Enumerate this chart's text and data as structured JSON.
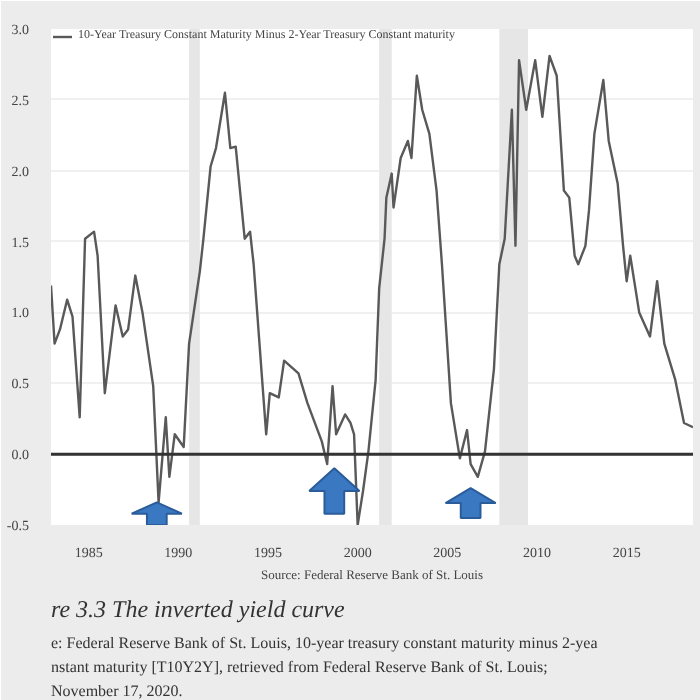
{
  "chart_data": {
    "type": "line",
    "legend": "top left",
    "grid": "y",
    "line_style": "solid",
    "marker": "none",
    "x": [
      1982.9,
      1983.1,
      1983.4,
      1983.8,
      1984.1,
      1984.5,
      1984.8,
      1985.3,
      1985.5,
      1985.9,
      1986.5,
      1986.9,
      1987.2,
      1987.6,
      1988.0,
      1988.6,
      1988.9,
      1989.3,
      1989.5,
      1989.8,
      1990.3,
      1990.6,
      1991.2,
      1991.4,
      1991.8,
      1992.1,
      1992.6,
      1992.9,
      1993.2,
      1993.7,
      1994.0,
      1994.2,
      1994.7,
      1994.9,
      1995.1,
      1995.6,
      1995.9,
      1996.7,
      1997.2,
      1998.0,
      1998.3,
      1998.6,
      1998.8,
      1999.3,
      1999.6,
      1999.8,
      2000.0,
      2000.3,
      2000.6,
      2001.0,
      2001.2,
      2001.5,
      2001.6,
      2001.9,
      2002.0,
      2002.4,
      2002.8,
      2003.0,
      2003.3,
      2003.6,
      2004.0,
      2004.4,
      2004.7,
      2004.9,
      2005.2,
      2005.7,
      2006.1,
      2006.3,
      2006.7,
      2007.1,
      2007.6,
      2007.9,
      2008.2,
      2008.6,
      2008.8,
      2009.0,
      2009.4,
      2009.9,
      2010.3,
      2010.7,
      2011.1,
      2011.5,
      2011.8,
      2012.1,
      2012.3,
      2012.7,
      2012.9,
      2013.2,
      2013.7,
      2014.0,
      2014.5,
      2014.8,
      2015.0,
      2015.2,
      2015.7,
      2016.3,
      2016.7,
      2017.1,
      2017.7,
      2018.2,
      2018.7
    ],
    "xlim": [
      1982.9,
      2018.7
    ],
    "xticks": [
      1985,
      1990,
      1995,
      2000,
      2005,
      2010,
      2015
    ],
    "ylim": [
      -0.5,
      3.0
    ],
    "yticks": [
      {
        "value": -0.5,
        "label": "-0.5"
      },
      {
        "value": 0,
        "label": "0.0"
      },
      {
        "value": 0.5,
        "label": "0.5"
      },
      {
        "value": 1,
        "label": "1.0"
      },
      {
        "value": 1.5,
        "label": "1.5"
      },
      {
        "value": 2,
        "label": "2.0"
      },
      {
        "value": 2.5,
        "label": "2.5"
      },
      {
        "value": 3,
        "label": "3.0"
      }
    ],
    "series": [
      {
        "name": "10-Year Treasury Constant Maturity Minus 2-Year Treasury Constant maturity",
        "color": "#595959",
        "values": [
          1.19,
          0.78,
          0.88,
          1.09,
          0.97,
          0.26,
          1.52,
          1.57,
          1.4,
          0.43,
          1.05,
          0.83,
          0.88,
          1.26,
          1.0,
          0.48,
          -0.34,
          0.26,
          -0.16,
          0.14,
          0.05,
          0.78,
          1.29,
          1.52,
          2.03,
          2.16,
          2.55,
          2.16,
          2.17,
          1.52,
          1.57,
          1.34,
          0.48,
          0.14,
          0.43,
          0.4,
          0.66,
          0.57,
          0.36,
          0.09,
          -0.07,
          0.48,
          0.14,
          0.28,
          0.22,
          0.14,
          -0.5,
          -0.26,
          0.02,
          0.52,
          1.17,
          1.52,
          1.81,
          1.98,
          1.74,
          2.09,
          2.21,
          2.09,
          2.67,
          2.43,
          2.26,
          1.86,
          1.34,
          0.95,
          0.36,
          -0.03,
          0.17,
          -0.07,
          -0.16,
          0.02,
          0.6,
          1.34,
          1.52,
          2.43,
          1.47,
          2.78,
          2.43,
          2.78,
          2.38,
          2.81,
          2.67,
          1.86,
          1.81,
          1.4,
          1.34,
          1.47,
          1.72,
          2.26,
          2.64,
          2.21,
          1.91,
          1.47,
          1.22,
          1.4,
          1.0,
          0.83,
          1.22,
          0.78,
          0.53,
          0.22,
          0.19
        ]
      }
    ],
    "ref_lines": [
      {
        "axis": "y",
        "value": 0,
        "color": "#333333"
      }
    ],
    "bands": [
      {
        "axis": "x",
        "from": 1990.6,
        "to": 1991.2,
        "color": "#e6e6e6"
      },
      {
        "axis": "x",
        "from": 2001.2,
        "to": 2001.9,
        "color": "#e6e6e6"
      },
      {
        "axis": "x",
        "from": 2007.9,
        "to": 2009.5,
        "color": "#e6e6e6"
      }
    ],
    "annotations": [
      "Source: Federal Reserve Bank of St. Louis",
      "re 3.3  The inverted yield curve",
      "e: Federal Reserve Bank of St. Louis, 10-year treasury constant maturity minus 2-yea",
      "nstant maturity [T10Y2Y], retrieved from Federal Reserve Bank of St. Louis;",
      "November 17, 2020."
    ]
  }
}
